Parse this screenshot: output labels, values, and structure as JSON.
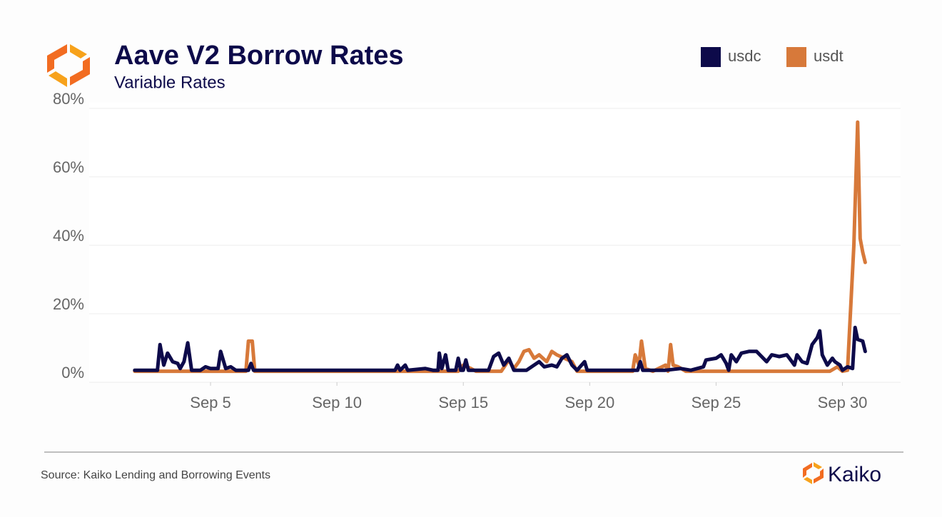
{
  "chart_data": {
    "type": "line",
    "title": "Aave V2 Borrow Rates",
    "subtitle": "Variable Rates",
    "source": "Source: Kaiko Lending and Borrowing Events",
    "brand": "Kaiko",
    "legend": "top-right",
    "grid": true,
    "xlim": [
      0.2,
      32.3
    ],
    "xticks": [
      {
        "value": 5,
        "label": "Sep 5"
      },
      {
        "value": 10,
        "label": "Sep 10"
      },
      {
        "value": 15,
        "label": "Sep 15"
      },
      {
        "value": 20,
        "label": "Sep 20"
      },
      {
        "value": 25,
        "label": "Sep 25"
      },
      {
        "value": 30,
        "label": "Sep 30"
      }
    ],
    "ylim": [
      0,
      80
    ],
    "yticks": [
      {
        "value": 0,
        "label": "0%"
      },
      {
        "value": 20,
        "label": "20%"
      },
      {
        "value": 40,
        "label": "40%"
      },
      {
        "value": 60,
        "label": "60%"
      },
      {
        "value": 80,
        "label": "80%"
      }
    ],
    "series": [
      {
        "name": "usdc",
        "color": "#0d0a4a",
        "x": [
          2.0,
          2.9,
          3.0,
          3.15,
          3.3,
          3.5,
          3.7,
          3.8,
          3.95,
          4.1,
          4.25,
          4.6,
          4.8,
          5.0,
          5.3,
          5.4,
          5.6,
          5.8,
          6.0,
          6.5,
          6.6,
          6.7,
          12.3,
          12.4,
          12.5,
          12.7,
          12.8,
          13.5,
          13.8,
          14.0,
          14.05,
          14.15,
          14.3,
          14.4,
          14.7,
          14.8,
          14.9,
          15.0,
          15.1,
          15.2,
          16.0,
          16.2,
          16.4,
          16.6,
          16.8,
          17.0,
          17.5,
          18.0,
          18.2,
          18.5,
          18.7,
          18.9,
          19.1,
          19.3,
          19.5,
          19.8,
          19.9,
          20.5,
          21.0,
          21.9,
          22.0,
          22.1,
          23.0,
          23.6,
          24.0,
          24.5,
          24.6,
          25.0,
          25.2,
          25.4,
          25.5,
          25.6,
          25.8,
          26.0,
          26.3,
          26.6,
          27.0,
          27.2,
          27.5,
          27.8,
          28.0,
          28.1,
          28.2,
          28.4,
          28.6,
          28.8,
          29.0,
          29.1,
          29.2,
          29.4,
          29.6,
          29.7,
          29.9,
          30.0,
          30.2,
          30.4,
          30.5,
          30.6,
          30.8,
          30.9
        ],
        "values": [
          3.5,
          3.5,
          11,
          5,
          8.5,
          6,
          5.5,
          4,
          6,
          11.5,
          3.5,
          3.5,
          4.5,
          4,
          4,
          9,
          4,
          4.5,
          3.5,
          3.5,
          5.5,
          3.5,
          3.5,
          5,
          3.5,
          5,
          3.5,
          4,
          3.5,
          3.5,
          8.5,
          4,
          8,
          3.5,
          3.5,
          7,
          3.5,
          3.5,
          6.5,
          3.5,
          3.5,
          7.5,
          8.5,
          5,
          7,
          3.5,
          3.5,
          6,
          4.5,
          5,
          4.5,
          7,
          8,
          5,
          3.5,
          6,
          3.5,
          3.5,
          3.5,
          3.5,
          6,
          3.5,
          3.5,
          4,
          3.5,
          4.5,
          6.5,
          7,
          8,
          5.5,
          3.5,
          8,
          6,
          8.5,
          9,
          9,
          6,
          8,
          7.5,
          8,
          6,
          5,
          8,
          6,
          5.5,
          11,
          13,
          15,
          8,
          5,
          7,
          6,
          5,
          3.5,
          4.5,
          4,
          16,
          12.5,
          12,
          9
        ]
      },
      {
        "name": "usdt",
        "color": "#d7793a",
        "x": [
          2.0,
          6.4,
          6.5,
          6.65,
          6.75,
          8.0,
          10.0,
          12.0,
          14.8,
          15.0,
          15.3,
          15.5,
          16.5,
          16.8,
          17.0,
          17.2,
          17.4,
          17.6,
          17.8,
          18.0,
          18.3,
          18.5,
          18.7,
          19.0,
          19.3,
          19.5,
          21.0,
          21.7,
          21.8,
          21.95,
          22.05,
          22.2,
          22.5,
          23.0,
          23.1,
          23.2,
          23.3,
          23.5,
          23.8,
          24.5,
          25.0,
          26.5,
          28.0,
          29.5,
          29.8,
          30.0,
          30.2,
          30.45,
          30.6,
          30.7,
          30.8,
          30.9
        ],
        "values": [
          3.2,
          3.2,
          12,
          12,
          3.2,
          3.2,
          3.2,
          3.2,
          3.2,
          5,
          4,
          3.2,
          3.2,
          6.5,
          4,
          6,
          9,
          9.5,
          7,
          8,
          6,
          9,
          8,
          7,
          6,
          3.2,
          3.2,
          3.2,
          8,
          5,
          12,
          4,
          3.2,
          5,
          3.2,
          11,
          5,
          4.5,
          3.2,
          3.2,
          3.2,
          3.2,
          3.2,
          3.2,
          4.5,
          3.2,
          3.5,
          40,
          76,
          42,
          38,
          35
        ]
      }
    ]
  }
}
